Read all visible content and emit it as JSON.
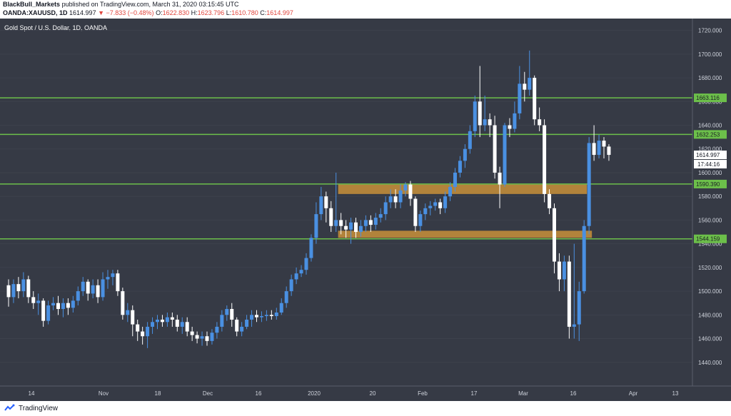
{
  "header": {
    "publisher": "BlackBull_Markets",
    "published_text": "published on TradingView.com, March 31, 2020 03:15:45 UTC",
    "symbol": "OANDA:XAUUSD, 1D",
    "last": "1614.997",
    "change": "▼ −7.833 (−0.48%)",
    "o_label": "O:",
    "o_value": "1622.830",
    "h_label": "H:",
    "h_value": "1623.796",
    "l_label": "L:",
    "l_value": "1610.780",
    "c_label": "C:",
    "c_value": "1614.997"
  },
  "chart_title": "Gold Spot / U.S. Dollar, 1D, OANDA",
  "footer": {
    "brand": "TradingView"
  },
  "colors": {
    "background": "#363a45",
    "up": "#4a90e2",
    "down": "#ffffff",
    "hline": "#6cbf4a",
    "zone": "#c8913a",
    "axis_text": "#cfd3dc"
  },
  "chart_data": {
    "type": "candlestick",
    "title": "Gold Spot / U.S. Dollar, 1D, OANDA",
    "ylim": [
      1420,
      1730
    ],
    "y_ticks": [
      "1440.000",
      "1460.000",
      "1480.000",
      "1500.000",
      "1520.000",
      "1540.000",
      "1560.000",
      "1580.000",
      "1600.000",
      "1620.000",
      "1640.000",
      "1660.000",
      "1680.000",
      "1700.000",
      "1720.000"
    ],
    "x_ticks": [
      "14",
      "Nov",
      "18",
      "Dec",
      "16",
      "2020",
      "20",
      "Feb",
      "17",
      "Mar",
      "16",
      "Apr",
      "13"
    ],
    "horizontal_levels": [
      {
        "label": "1663.116",
        "value": 1663.116
      },
      {
        "label": "1632.253",
        "value": 1632.253
      },
      {
        "label": "1590.390",
        "value": 1590.39
      },
      {
        "label": "1544.159",
        "value": 1544.159
      }
    ],
    "zones": [
      {
        "low": 1582,
        "high": 1590,
        "from_bar": 67,
        "to_bar": 116
      },
      {
        "low": 1545,
        "high": 1551,
        "from_bar": 67,
        "to_bar": 117
      }
    ],
    "last_price_label": "1614.997",
    "countdown_label": "17:44:16",
    "candles": [
      [
        1505,
        1495,
        1510,
        1487
      ],
      [
        1495,
        1506,
        1510,
        1490
      ],
      [
        1506,
        1500,
        1512,
        1494
      ],
      [
        1500,
        1510,
        1516,
        1495
      ],
      [
        1510,
        1495,
        1513,
        1490
      ],
      [
        1495,
        1490,
        1500,
        1485
      ],
      [
        1490,
        1492,
        1498,
        1480
      ],
      [
        1492,
        1475,
        1494,
        1470
      ],
      [
        1475,
        1488,
        1492,
        1472
      ],
      [
        1488,
        1490,
        1495,
        1484
      ],
      [
        1490,
        1485,
        1496,
        1480
      ],
      [
        1485,
        1490,
        1494,
        1478
      ],
      [
        1490,
        1486,
        1494,
        1480
      ],
      [
        1486,
        1492,
        1496,
        1482
      ],
      [
        1492,
        1500,
        1504,
        1488
      ],
      [
        1500,
        1508,
        1512,
        1496
      ],
      [
        1508,
        1498,
        1510,
        1492
      ],
      [
        1498,
        1505,
        1510,
        1494
      ],
      [
        1505,
        1495,
        1510,
        1490
      ],
      [
        1495,
        1510,
        1516,
        1492
      ],
      [
        1510,
        1512,
        1518,
        1502
      ],
      [
        1512,
        1515,
        1518,
        1505
      ],
      [
        1515,
        1500,
        1518,
        1496
      ],
      [
        1500,
        1480,
        1503,
        1476
      ],
      [
        1480,
        1484,
        1490,
        1474
      ],
      [
        1484,
        1472,
        1488,
        1462
      ],
      [
        1472,
        1466,
        1476,
        1458
      ],
      [
        1466,
        1462,
        1470,
        1455
      ],
      [
        1462,
        1470,
        1474,
        1452
      ],
      [
        1470,
        1474,
        1478,
        1464
      ],
      [
        1474,
        1476,
        1480,
        1468
      ],
      [
        1476,
        1474,
        1480,
        1470
      ],
      [
        1474,
        1478,
        1482,
        1470
      ],
      [
        1478,
        1476,
        1482,
        1470
      ],
      [
        1476,
        1470,
        1480,
        1466
      ],
      [
        1470,
        1474,
        1478,
        1464
      ],
      [
        1474,
        1466,
        1478,
        1462
      ],
      [
        1466,
        1463,
        1470,
        1458
      ],
      [
        1463,
        1460,
        1466,
        1456
      ],
      [
        1460,
        1462,
        1466,
        1454
      ],
      [
        1462,
        1458,
        1466,
        1454
      ],
      [
        1458,
        1465,
        1468,
        1455
      ],
      [
        1465,
        1470,
        1474,
        1460
      ],
      [
        1470,
        1480,
        1484,
        1466
      ],
      [
        1480,
        1485,
        1488,
        1475
      ],
      [
        1485,
        1476,
        1490,
        1470
      ],
      [
        1476,
        1466,
        1478,
        1462
      ],
      [
        1466,
        1470,
        1474,
        1462
      ],
      [
        1470,
        1476,
        1480,
        1468
      ],
      [
        1476,
        1480,
        1484,
        1470
      ],
      [
        1480,
        1478,
        1484,
        1474
      ],
      [
        1478,
        1479,
        1483,
        1474
      ],
      [
        1479,
        1480,
        1484,
        1475
      ],
      [
        1480,
        1479,
        1484,
        1476
      ],
      [
        1479,
        1482,
        1486,
        1476
      ],
      [
        1482,
        1490,
        1494,
        1480
      ],
      [
        1490,
        1500,
        1504,
        1486
      ],
      [
        1500,
        1510,
        1514,
        1496
      ],
      [
        1510,
        1515,
        1520,
        1506
      ],
      [
        1515,
        1518,
        1522,
        1512
      ],
      [
        1518,
        1528,
        1532,
        1514
      ],
      [
        1528,
        1545,
        1548,
        1525
      ],
      [
        1545,
        1565,
        1575,
        1540
      ],
      [
        1565,
        1580,
        1588,
        1560
      ],
      [
        1580,
        1570,
        1584,
        1558
      ],
      [
        1570,
        1555,
        1576,
        1550
      ],
      [
        1555,
        1560,
        1600,
        1550
      ],
      [
        1560,
        1555,
        1566,
        1548
      ],
      [
        1555,
        1552,
        1560,
        1545
      ],
      [
        1552,
        1558,
        1562,
        1540
      ],
      [
        1558,
        1550,
        1562,
        1545
      ],
      [
        1550,
        1555,
        1560,
        1546
      ],
      [
        1555,
        1560,
        1564,
        1550
      ],
      [
        1560,
        1556,
        1564,
        1550
      ],
      [
        1556,
        1562,
        1566,
        1552
      ],
      [
        1562,
        1565,
        1570,
        1558
      ],
      [
        1565,
        1575,
        1580,
        1560
      ],
      [
        1575,
        1580,
        1586,
        1570
      ],
      [
        1580,
        1575,
        1586,
        1570
      ],
      [
        1575,
        1585,
        1590,
        1570
      ],
      [
        1585,
        1590,
        1592,
        1580
      ],
      [
        1590,
        1578,
        1593,
        1572
      ],
      [
        1578,
        1555,
        1580,
        1550
      ],
      [
        1555,
        1565,
        1568,
        1550
      ],
      [
        1565,
        1570,
        1574,
        1560
      ],
      [
        1570,
        1572,
        1576,
        1564
      ],
      [
        1572,
        1575,
        1578,
        1568
      ],
      [
        1575,
        1570,
        1578,
        1565
      ],
      [
        1570,
        1580,
        1584,
        1566
      ],
      [
        1580,
        1588,
        1592,
        1576
      ],
      [
        1588,
        1600,
        1604,
        1584
      ],
      [
        1600,
        1610,
        1614,
        1596
      ],
      [
        1610,
        1620,
        1624,
        1604
      ],
      [
        1620,
        1635,
        1640,
        1616
      ],
      [
        1635,
        1660,
        1665,
        1630
      ],
      [
        1660,
        1640,
        1690,
        1630
      ],
      [
        1640,
        1645,
        1665,
        1635
      ],
      [
        1645,
        1640,
        1650,
        1630
      ],
      [
        1640,
        1600,
        1648,
        1595
      ],
      [
        1600,
        1590,
        1605,
        1570
      ],
      [
        1590,
        1640,
        1642,
        1588
      ],
      [
        1640,
        1637,
        1646,
        1630
      ],
      [
        1637,
        1650,
        1660,
        1634
      ],
      [
        1650,
        1675,
        1690,
        1645
      ],
      [
        1675,
        1670,
        1685,
        1660
      ],
      [
        1670,
        1680,
        1703,
        1665
      ],
      [
        1680,
        1645,
        1682,
        1640
      ],
      [
        1645,
        1640,
        1655,
        1635
      ],
      [
        1640,
        1582,
        1645,
        1575
      ],
      [
        1582,
        1570,
        1586,
        1565
      ],
      [
        1570,
        1525,
        1574,
        1515
      ],
      [
        1525,
        1510,
        1532,
        1500
      ],
      [
        1510,
        1525,
        1530,
        1500
      ],
      [
        1525,
        1470,
        1530,
        1460
      ],
      [
        1470,
        1472,
        1540,
        1460
      ],
      [
        1472,
        1500,
        1508,
        1458
      ],
      [
        1500,
        1555,
        1560,
        1498
      ],
      [
        1555,
        1625,
        1630,
        1548
      ],
      [
        1625,
        1615,
        1640,
        1610
      ],
      [
        1615,
        1627,
        1632,
        1612
      ],
      [
        1627,
        1622,
        1630,
        1612
      ],
      [
        1622,
        1615,
        1624,
        1610
      ]
    ]
  }
}
